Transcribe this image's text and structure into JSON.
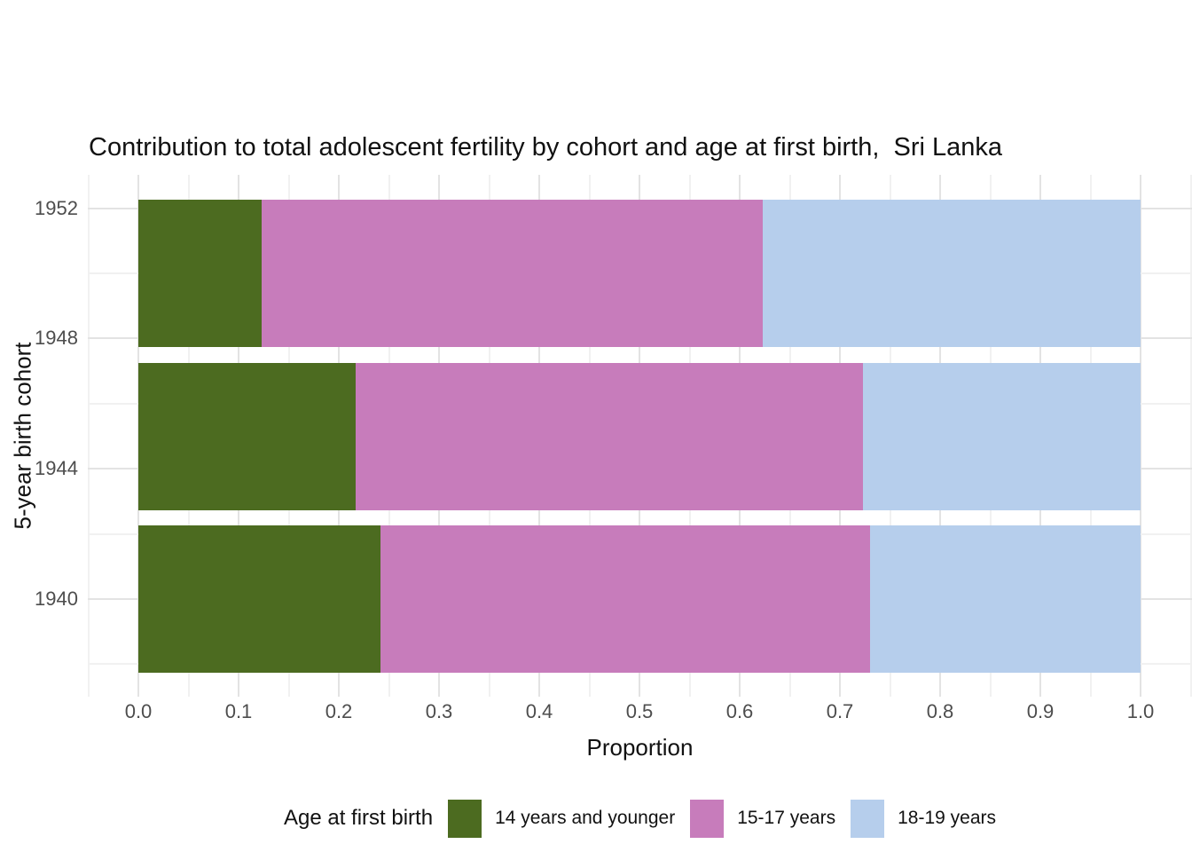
{
  "chart_data": {
    "type": "bar",
    "orientation": "horizontal",
    "stacked": true,
    "title": "Contribution to total adolescent fertility by cohort and age at first birth,  Sri Lanka",
    "xlabel": "Proportion",
    "ylabel": "5-year birth cohort",
    "xlim": [
      0.0,
      1.0
    ],
    "x_tick_labels": [
      "0.0",
      "0.1",
      "0.2",
      "0.3",
      "0.4",
      "0.5",
      "0.6",
      "0.7",
      "0.8",
      "0.9",
      "1.0"
    ],
    "y_tick_labels": [
      "1952",
      "1948",
      "1944",
      "1940"
    ],
    "ylim": [
      1937,
      1953
    ],
    "grid": true,
    "background_color": "#ffffff",
    "gridline_color": "#e3e3e3",
    "bar_cohort_centers": [
      1950,
      1945,
      1940
    ],
    "series": [
      {
        "name": "14 years and younger",
        "color": "#4c6b20",
        "values": [
          0.123,
          0.217,
          0.242
        ]
      },
      {
        "name": "15-17 years",
        "color": "#c77cbb",
        "values": [
          0.5,
          0.506,
          0.488
        ]
      },
      {
        "name": "18-19 years",
        "color": "#b6ceec",
        "values": [
          0.377,
          0.277,
          0.27
        ]
      }
    ],
    "legend_title": "Age at first birth",
    "legend_position": "bottom"
  }
}
